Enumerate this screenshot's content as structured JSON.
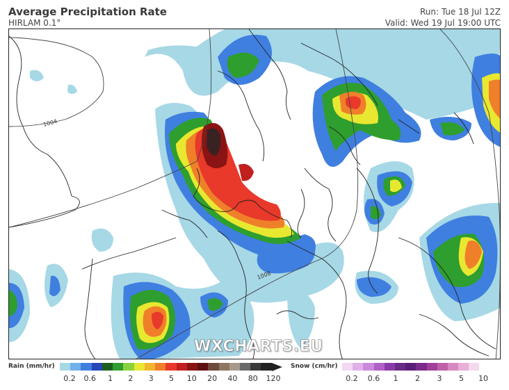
{
  "header": {
    "title": "Average Precipitation Rate",
    "model": "HIRLAM 0.1°",
    "run": "Run: Tue 18 Jul 12Z",
    "valid": "Valid: Wed 19 Jul 19:00 UTC"
  },
  "map": {
    "isobar_labels": [
      "1004",
      "1008"
    ],
    "watermark": "WXCHARTS.EU"
  },
  "legend": {
    "rain": {
      "label": "Rain (mm/hr)",
      "ticks": [
        "0.2",
        "0.6",
        "1",
        "2",
        "3",
        "5",
        "10",
        "20",
        "40",
        "80",
        "120"
      ],
      "colors": [
        "#a6d8e6",
        "#6fb1e8",
        "#3f7fe0",
        "#2545b8",
        "#1b5e20",
        "#2e9e2e",
        "#8bd23a",
        "#e8e830",
        "#f2b530",
        "#f07f2a",
        "#e8392a",
        "#c21f1f",
        "#8a1414",
        "#5c1010",
        "#6e4a3a",
        "#8f7660",
        "#a89a8a",
        "#6a6a6a",
        "#3a3a3a",
        "#222222"
      ]
    },
    "snow": {
      "label": "Snow (cm/hr)",
      "ticks": [
        "0.2",
        "0.6",
        "1",
        "2",
        "3",
        "5",
        "10"
      ],
      "colors": [
        "#f2d8f2",
        "#e0b0e8",
        "#cc88dd",
        "#b060c8",
        "#8a3aa8",
        "#6a2a88",
        "#5a1e78",
        "#7a2a8a",
        "#a0409a",
        "#c060aa",
        "#d888c0",
        "#e8b0d8",
        "#f4d8ec",
        "#ffffff"
      ]
    }
  }
}
